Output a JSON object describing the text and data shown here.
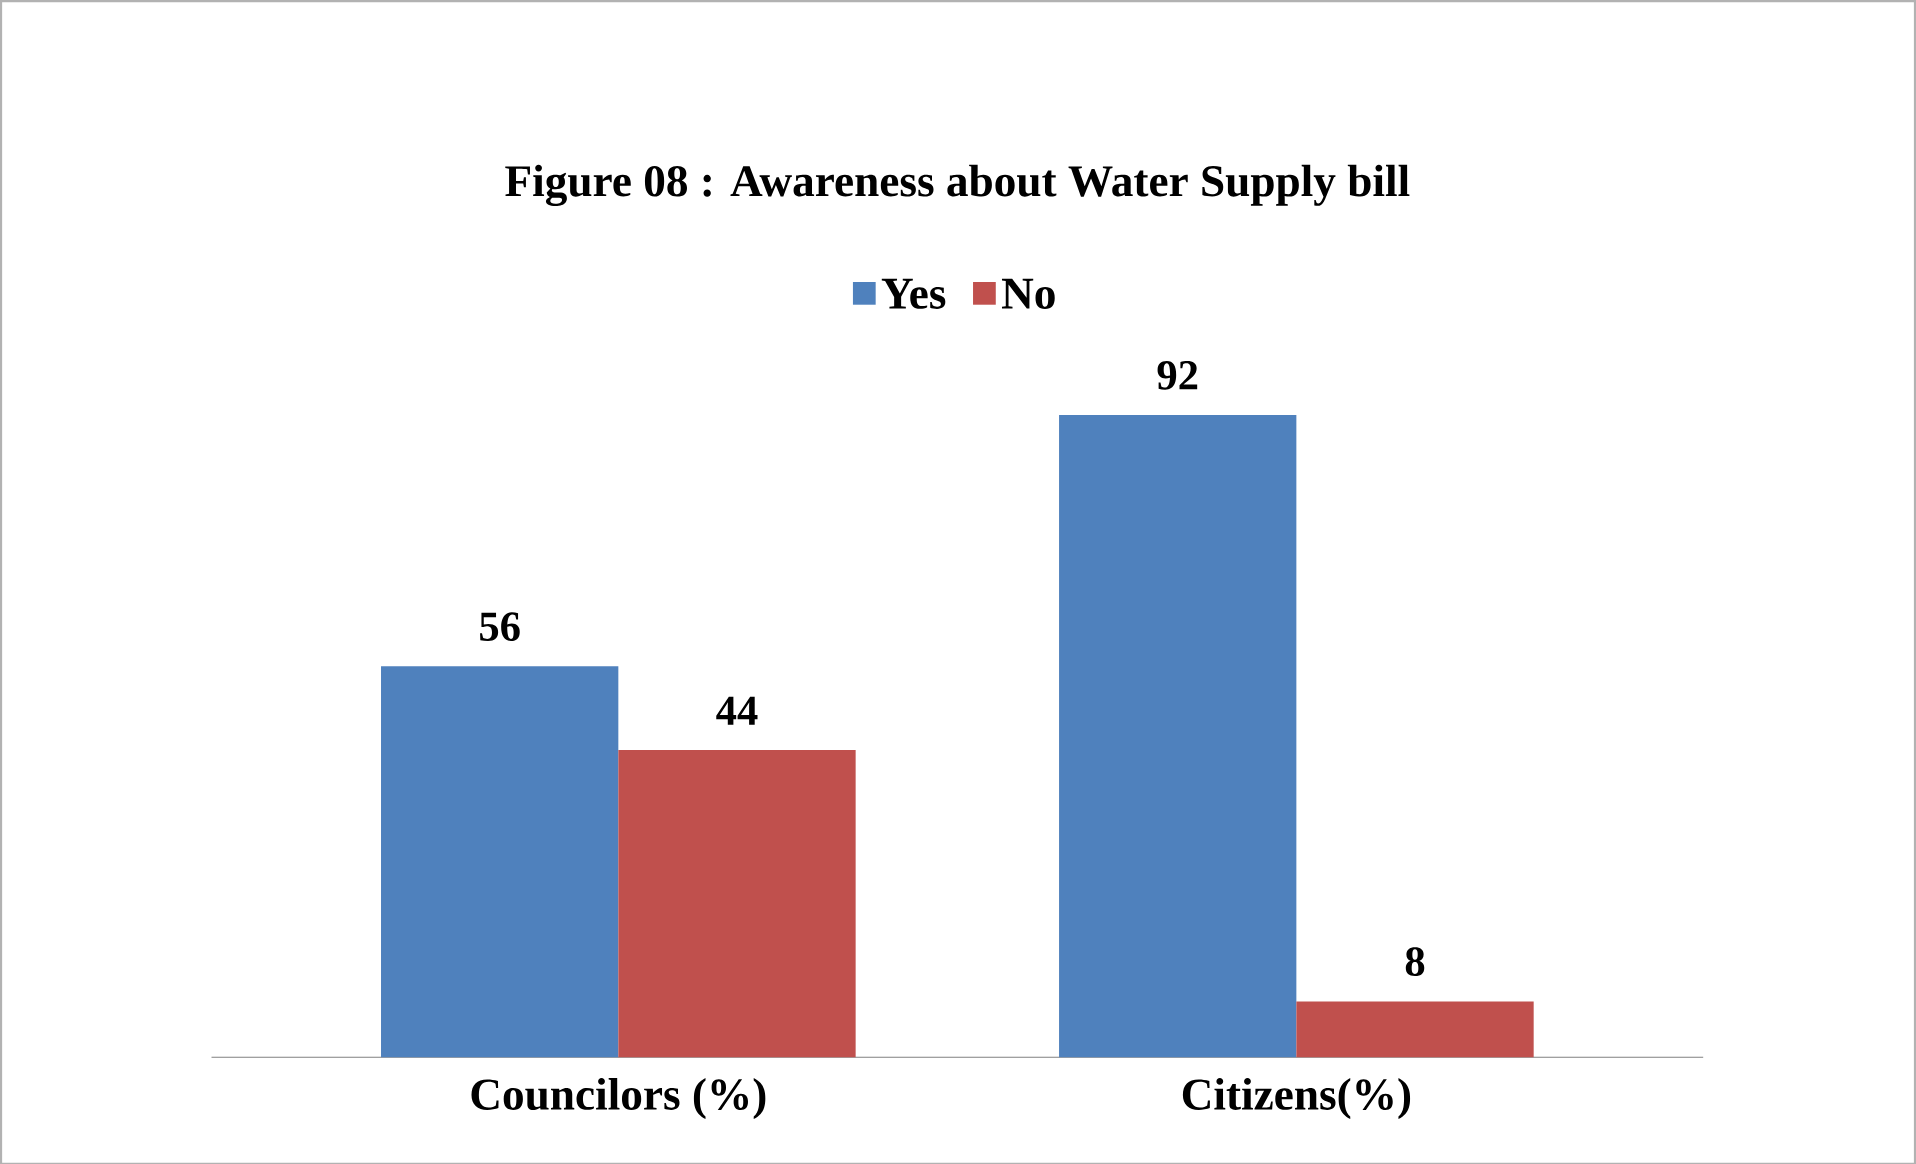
{
  "chart_data": {
    "type": "bar",
    "title": "Figure 08 : Awareness about Water  Supply bill",
    "categories": [
      "Councilors (%)",
      "Citizens(%)"
    ],
    "series": [
      {
        "name": "Yes",
        "color": "#4f81bd",
        "values": [
          56,
          92
        ]
      },
      {
        "name": "No",
        "color": "#c0504d",
        "values": [
          44,
          8
        ]
      }
    ],
    "data_labels": true,
    "legend": "top"
  }
}
